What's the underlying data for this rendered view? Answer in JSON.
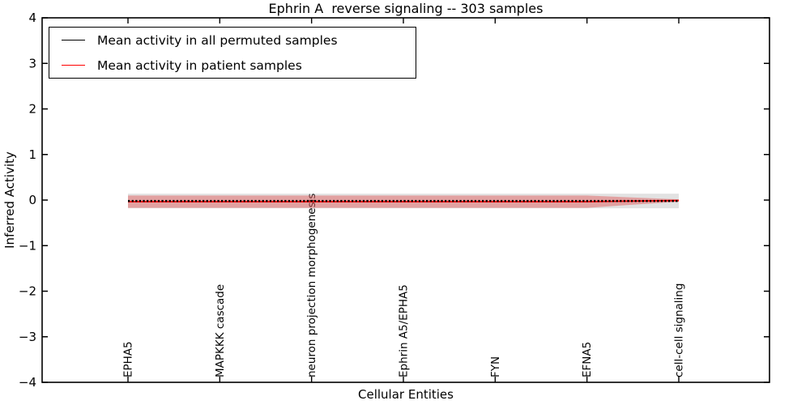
{
  "chart_data": {
    "type": "line",
    "title": "Ephrin A  reverse signaling -- 303 samples",
    "xlabel": "Cellular Entities",
    "ylabel": "Inferred Activity",
    "ylim": [
      -4,
      4
    ],
    "yticks": [
      "4",
      "3",
      "2",
      "1",
      "0",
      "−1",
      "−2",
      "−3",
      "−4"
    ],
    "ytick_values": [
      4,
      3,
      2,
      1,
      0,
      -1,
      -2,
      -3,
      -4
    ],
    "categories": [
      "EPHA5",
      "MAPKKK cascade",
      "neuron projection morphogenesis",
      "Ephrin A5/EPHA5",
      "FYN",
      "EFNA5",
      "cell-cell signaling"
    ],
    "grid": false,
    "legend_position": "upper left",
    "axes_color": "#000000",
    "background_color": "#ffffff",
    "series": [
      {
        "name": "Mean activity in all permuted samples",
        "color": "#000000",
        "line_style": "marker-dashed",
        "values": [
          -0.02,
          -0.02,
          -0.02,
          -0.02,
          -0.02,
          -0.02,
          -0.02
        ],
        "band": [
          0.16,
          0.16,
          0.16,
          0.16,
          0.16,
          0.16,
          0.16
        ],
        "band_color": "#969696",
        "band_alpha": 0.28
      },
      {
        "name": "Mean activity in patient samples",
        "color": "#ff0000",
        "line_style": "solid",
        "values": [
          -0.035,
          -0.035,
          -0.035,
          -0.035,
          -0.035,
          -0.035,
          -0.01
        ],
        "band": [
          0.135,
          0.135,
          0.135,
          0.135,
          0.135,
          0.135,
          0.025
        ],
        "band_color": "#e44040",
        "band_alpha": 0.4
      }
    ]
  }
}
